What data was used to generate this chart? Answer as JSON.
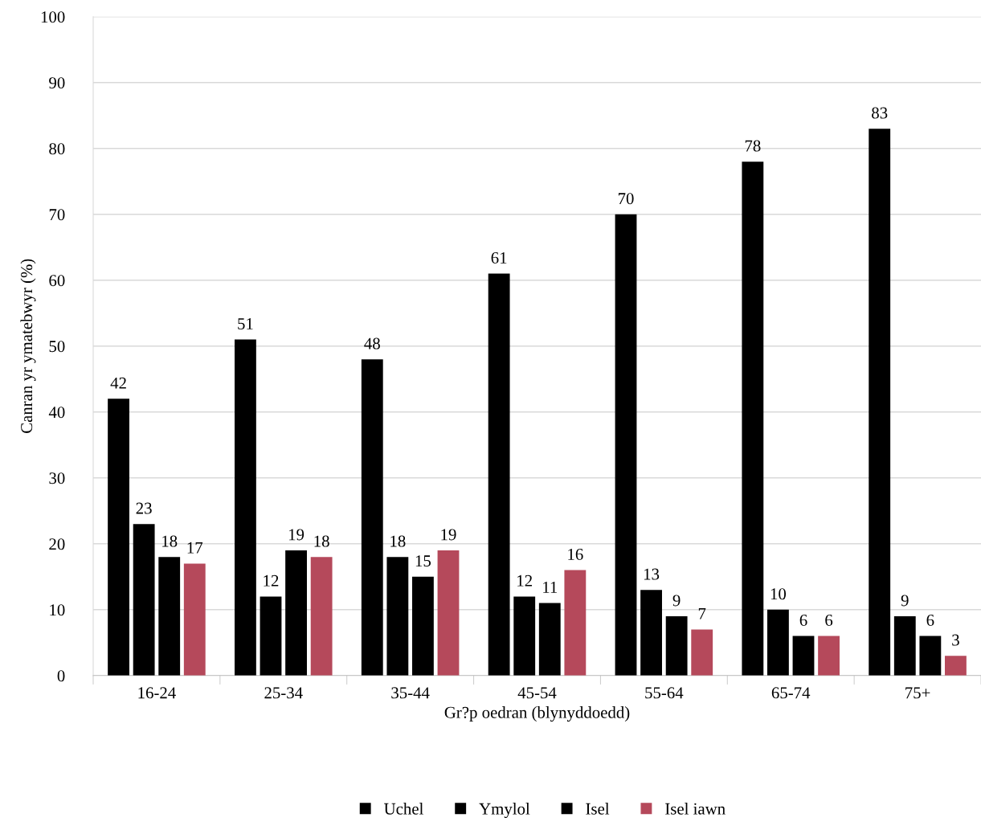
{
  "chart_data": {
    "type": "bar",
    "xlabel": "Gr?p oedran (blynyddoedd)",
    "ylabel": "Canran yr ymatebwyr (%)",
    "categories": [
      "16-24",
      "25-34",
      "35-44",
      "45-54",
      "55-64",
      "65-74",
      "75+"
    ],
    "series": [
      {
        "name": "Uchel",
        "color": "#000000",
        "values": [
          42,
          51,
          48,
          61,
          70,
          78,
          83
        ]
      },
      {
        "name": "Ymylol",
        "color": "#000000",
        "values": [
          23,
          12,
          18,
          12,
          13,
          10,
          9
        ]
      },
      {
        "name": "Isel",
        "color": "#000000",
        "values": [
          18,
          19,
          15,
          11,
          9,
          6,
          6
        ]
      },
      {
        "name": "Isel iawn",
        "color": "#b5495b",
        "values": [
          17,
          18,
          19,
          16,
          7,
          6,
          3
        ]
      }
    ],
    "ylim": [
      0,
      100
    ],
    "yticks": [
      0,
      10,
      20,
      30,
      40,
      50,
      60,
      70,
      80,
      90,
      100
    ],
    "grid": "y",
    "legend": "bottom",
    "data_labels": true
  }
}
